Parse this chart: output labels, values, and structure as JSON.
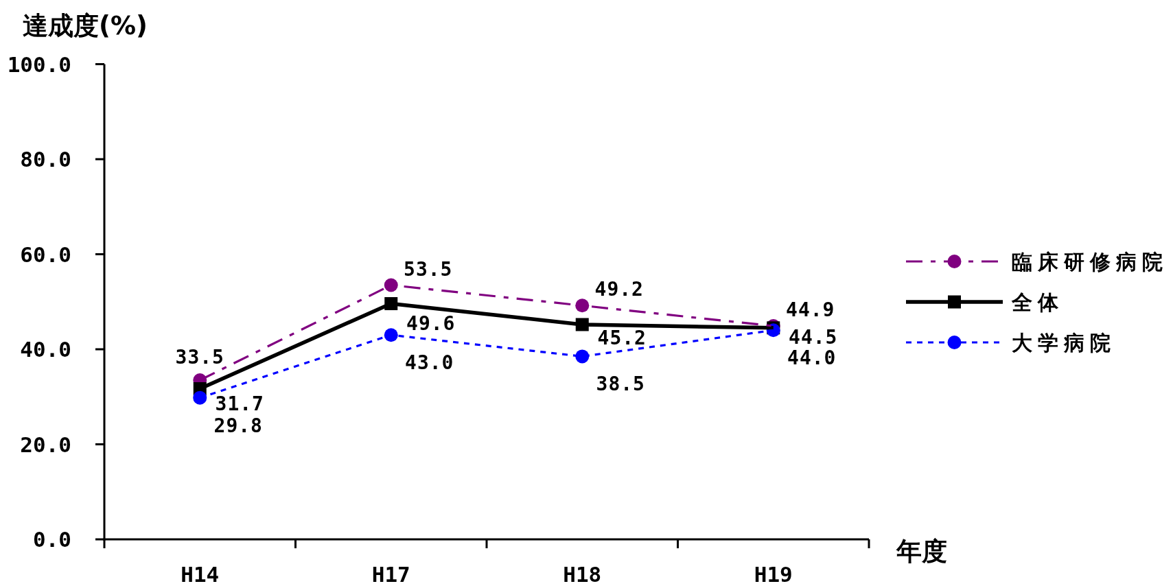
{
  "chart_data": {
    "type": "line",
    "ylabel": "達成度(%)",
    "xlabel": "年度",
    "categories": [
      "H14",
      "H17",
      "H18",
      "H19"
    ],
    "ylim": [
      0,
      100
    ],
    "yticks": [
      {
        "value": 0,
        "label": "0.0"
      },
      {
        "value": 20,
        "label": "20.0"
      },
      {
        "value": 40,
        "label": "40.0"
      },
      {
        "value": 60,
        "label": "60.0"
      },
      {
        "value": 80,
        "label": "80.0"
      },
      {
        "value": 100,
        "label": "100.0"
      }
    ],
    "legend": "right",
    "series": [
      {
        "name": "臨床研修病院",
        "color": "#800080",
        "values": [
          33.5,
          53.5,
          49.2,
          44.9
        ],
        "value_labels": [
          "33.5",
          "53.5",
          "49.2",
          "44.9"
        ],
        "marker": "circle",
        "line_style": "dashed"
      },
      {
        "name": "全体",
        "color": "#000000",
        "values": [
          31.7,
          49.6,
          45.2,
          44.5
        ],
        "value_labels": [
          "31.7",
          "49.6",
          "45.2",
          "44.5"
        ],
        "marker": "square",
        "line_style": "solid"
      },
      {
        "name": "大学病院",
        "color": "#0000ff",
        "values": [
          29.8,
          43.0,
          38.5,
          44.0
        ],
        "value_labels": [
          "29.8",
          "43.0",
          "38.5",
          "44.0"
        ],
        "marker": "circle",
        "line_style": "dotted"
      }
    ]
  }
}
